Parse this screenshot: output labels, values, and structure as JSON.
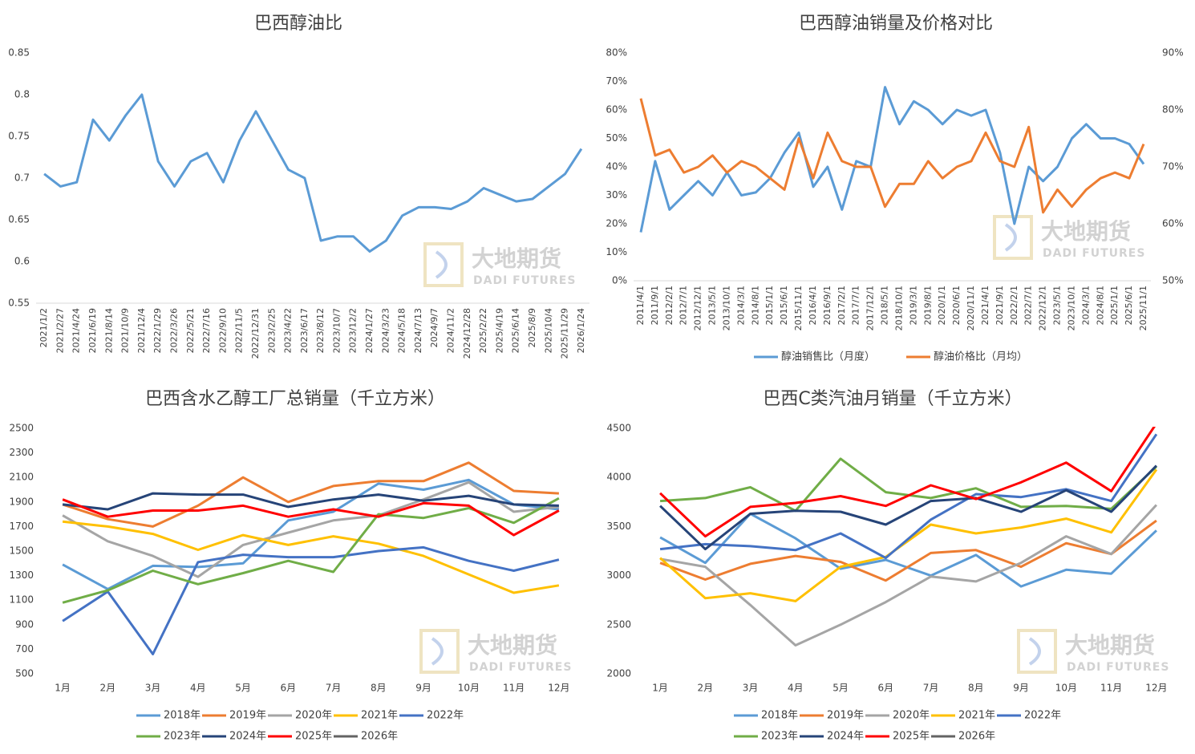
{
  "watermark": {
    "name": "大地期货",
    "sub": "DADI FUTURES"
  },
  "chart_data": [
    {
      "type": "line",
      "title": "巴西醇油比",
      "categories": [
        "2021/1/2",
        "2021/2/27",
        "2021/4/24",
        "2021/6/19",
        "2021/8/14",
        "2021/10/9",
        "2021/12/4",
        "2022/1/29",
        "2022/3/26",
        "2022/5/21",
        "2022/7/16",
        "2022/9/10",
        "2022/11/5",
        "2022/12/31",
        "2023/2/25",
        "2023/4/22",
        "2023/6/17",
        "2023/8/12",
        "2023/10/7",
        "2023/12/2",
        "2024/1/27",
        "2024/3/23",
        "2024/5/18",
        "2024/7/13",
        "2024/9/7",
        "2024/11/2",
        "2024/12/28",
        "2025/2/22",
        "2025/4/19",
        "2025/6/14",
        "2025/8/9",
        "2025/10/4",
        "2025/11/29",
        "2026/1/24"
      ],
      "series": [
        {
          "name": null,
          "color": "#5b9bd5",
          "values": [
            0.705,
            0.69,
            0.695,
            0.77,
            0.745,
            0.775,
            0.8,
            0.72,
            0.69,
            0.72,
            0.73,
            0.695,
            0.745,
            0.78,
            0.745,
            0.71,
            0.7,
            0.625,
            0.63,
            0.63,
            0.612,
            0.625,
            0.655,
            0.665,
            0.665,
            0.663,
            0.672,
            0.688,
            0.68,
            0.672,
            0.675,
            0.69,
            0.705,
            0.735
          ]
        }
      ],
      "ylim": [
        0.55,
        0.85
      ],
      "yticks": [
        0.55,
        0.6,
        0.65,
        0.7,
        0.75,
        0.8,
        0.85
      ],
      "grid": false
    },
    {
      "type": "line",
      "title": "巴西醇油销量及价格对比",
      "categories": [
        "2011/4/1",
        "2011/9/1",
        "2012/2/1",
        "2012/7/1",
        "2012/12/1",
        "2013/5/1",
        "2013/10/1",
        "2014/3/1",
        "2014/8/1",
        "2015/1/1",
        "2015/6/1",
        "2015/11/1",
        "2016/4/1",
        "2016/9/1",
        "2017/2/1",
        "2017/7/1",
        "2017/12/1",
        "2018/5/1",
        "2018/10/1",
        "2019/3/1",
        "2019/8/1",
        "2020/1/1",
        "2020/6/1",
        "2020/11/1",
        "2021/4/1",
        "2021/9/1",
        "2022/2/1",
        "2022/7/1",
        "2022/12/1",
        "2023/5/1",
        "2023/10/1",
        "2024/3/1",
        "2024/8/1",
        "2025/1/1",
        "2025/6/1",
        "2025/11/1"
      ],
      "series": [
        {
          "name": "醇油销售比（月度）",
          "color": "#5b9bd5",
          "values": [
            17,
            42,
            25,
            30,
            35,
            30,
            38,
            30,
            31,
            36,
            45,
            52,
            33,
            40,
            25,
            42,
            40,
            68,
            55,
            63,
            60,
            55,
            60,
            58,
            60,
            45,
            20,
            40,
            35,
            40,
            50,
            55,
            50,
            50,
            48,
            41
          ]
        },
        {
          "name": "醇油价格比（月均）",
          "color": "#ed7d31",
          "axis": "y2",
          "values": [
            82,
            72,
            73,
            69,
            70,
            72,
            69,
            71,
            70,
            68,
            66,
            75,
            68,
            76,
            71,
            70,
            70,
            63,
            67,
            67,
            71,
            68,
            70,
            71,
            76,
            71,
            70,
            77,
            62,
            66,
            63,
            66,
            68,
            69,
            68,
            74
          ]
        }
      ],
      "ylim": [
        0,
        80
      ],
      "yticks": [
        {
          "value": 0,
          "label": "0%"
        },
        {
          "value": 10,
          "label": "10%"
        },
        {
          "value": 20,
          "label": "20%"
        },
        {
          "value": 30,
          "label": "30%"
        },
        {
          "value": 40,
          "label": "40%"
        },
        {
          "value": 50,
          "label": "50%"
        },
        {
          "value": 60,
          "label": "60%"
        },
        {
          "value": 70,
          "label": "70%"
        },
        {
          "value": 80,
          "label": "80%"
        }
      ],
      "y2lim": [
        50,
        90
      ],
      "y2ticks": [
        {
          "value": 50,
          "label": "50%"
        },
        {
          "value": 60,
          "label": "60%"
        },
        {
          "value": 70,
          "label": "70%"
        },
        {
          "value": 80,
          "label": "80%"
        },
        {
          "value": 90,
          "label": "90%"
        }
      ],
      "grid": false,
      "legend": "bottom"
    },
    {
      "type": "line",
      "title": "巴西含水乙醇工厂总销量（千立方米）",
      "categories": [
        "1月",
        "2月",
        "3月",
        "4月",
        "5月",
        "6月",
        "7月",
        "8月",
        "9月",
        "10月",
        "11月",
        "12月"
      ],
      "series": [
        {
          "name": "2018年",
          "color": "#5b9bd5",
          "values": [
            1390,
            1190,
            1380,
            1370,
            1400,
            1750,
            1820,
            2050,
            2000,
            2080,
            1880,
            1840
          ]
        },
        {
          "name": "2019年",
          "color": "#ed7d31",
          "values": [
            1880,
            1760,
            1700,
            1870,
            2100,
            1900,
            2030,
            2070,
            2070,
            2220,
            1990,
            1970
          ]
        },
        {
          "name": "2020年",
          "color": "#a5a5a5",
          "values": [
            1790,
            1580,
            1460,
            1290,
            1550,
            1650,
            1750,
            1790,
            1920,
            2060,
            1820,
            1860
          ]
        },
        {
          "name": "2021年",
          "color": "#ffc000",
          "values": [
            1740,
            1700,
            1640,
            1510,
            1630,
            1550,
            1620,
            1560,
            1460,
            1310,
            1160,
            1220
          ]
        },
        {
          "name": "2022年",
          "color": "#4472c4",
          "values": [
            930,
            1170,
            660,
            1410,
            1470,
            1450,
            1450,
            1500,
            1530,
            1420,
            1340,
            1430
          ]
        },
        {
          "name": "2023年",
          "color": "#70ad47",
          "values": [
            1080,
            1180,
            1340,
            1230,
            1320,
            1420,
            1330,
            1800,
            1770,
            1850,
            1730,
            1930
          ]
        },
        {
          "name": "2024年",
          "color": "#264478",
          "values": [
            1880,
            1840,
            1970,
            1960,
            1960,
            1860,
            1920,
            1960,
            1910,
            1950,
            1880,
            1870
          ]
        },
        {
          "name": "2025年",
          "color": "#ff0000",
          "values": [
            1920,
            1780,
            1830,
            1830,
            1870,
            1780,
            1840,
            1780,
            1890,
            1870,
            1630,
            1830
          ]
        },
        {
          "name": "2026年",
          "color": "#636363",
          "values": [
            null,
            null,
            null,
            null,
            null,
            null,
            null,
            null,
            null,
            null,
            null,
            null
          ]
        }
      ],
      "ylim": [
        500,
        2500
      ],
      "yticks": [
        500,
        700,
        900,
        1100,
        1300,
        1500,
        1700,
        1900,
        2100,
        2300,
        2500
      ],
      "grid": false,
      "legend": "bottom"
    },
    {
      "type": "line",
      "title": "巴西C类汽油月销量（千立方米）",
      "categories": [
        "1月",
        "2月",
        "3月",
        "4月",
        "5月",
        "6月",
        "7月",
        "8月",
        "9月",
        "10月",
        "11月",
        "12月"
      ],
      "series": [
        {
          "name": "2018年",
          "color": "#5b9bd5",
          "values": [
            3390,
            3130,
            3630,
            3380,
            3070,
            3160,
            3000,
            3210,
            2890,
            3060,
            3020,
            3460
          ]
        },
        {
          "name": "2019年",
          "color": "#ed7d31",
          "values": [
            3130,
            2960,
            3120,
            3200,
            3140,
            2950,
            3230,
            3260,
            3090,
            3330,
            3220,
            3560
          ]
        },
        {
          "name": "2020年",
          "color": "#a5a5a5",
          "values": [
            3170,
            3090,
            2700,
            2290,
            2500,
            2730,
            2990,
            2940,
            3130,
            3400,
            3220,
            3720
          ]
        },
        {
          "name": "2021年",
          "color": "#ffc000",
          "values": [
            3180,
            2770,
            2820,
            2740,
            3090,
            3190,
            3520,
            3430,
            3490,
            3580,
            3440,
            4080
          ]
        },
        {
          "name": "2022年",
          "color": "#4472c4",
          "values": [
            3270,
            3320,
            3300,
            3260,
            3430,
            3180,
            3570,
            3830,
            3800,
            3880,
            3760,
            4440
          ]
        },
        {
          "name": "2023年",
          "color": "#70ad47",
          "values": [
            3760,
            3790,
            3900,
            3660,
            4190,
            3850,
            3790,
            3890,
            3700,
            3710,
            3680,
            4110
          ]
        },
        {
          "name": "2024年",
          "color": "#264478",
          "values": [
            3710,
            3270,
            3630,
            3660,
            3650,
            3520,
            3760,
            3790,
            3650,
            3870,
            3650,
            4120
          ]
        },
        {
          "name": "2025年",
          "color": "#ff0000",
          "values": [
            3840,
            3400,
            3700,
            3740,
            3810,
            3710,
            3920,
            3780,
            3950,
            4150,
            3860,
            4550
          ]
        },
        {
          "name": "2026年",
          "color": "#636363",
          "values": [
            null,
            null,
            null,
            null,
            null,
            null,
            null,
            null,
            null,
            null,
            null,
            null
          ]
        }
      ],
      "ylim": [
        2000,
        4500
      ],
      "yticks": [
        2000,
        2500,
        3000,
        3500,
        4000,
        4500
      ],
      "grid": false,
      "legend": "bottom"
    }
  ]
}
